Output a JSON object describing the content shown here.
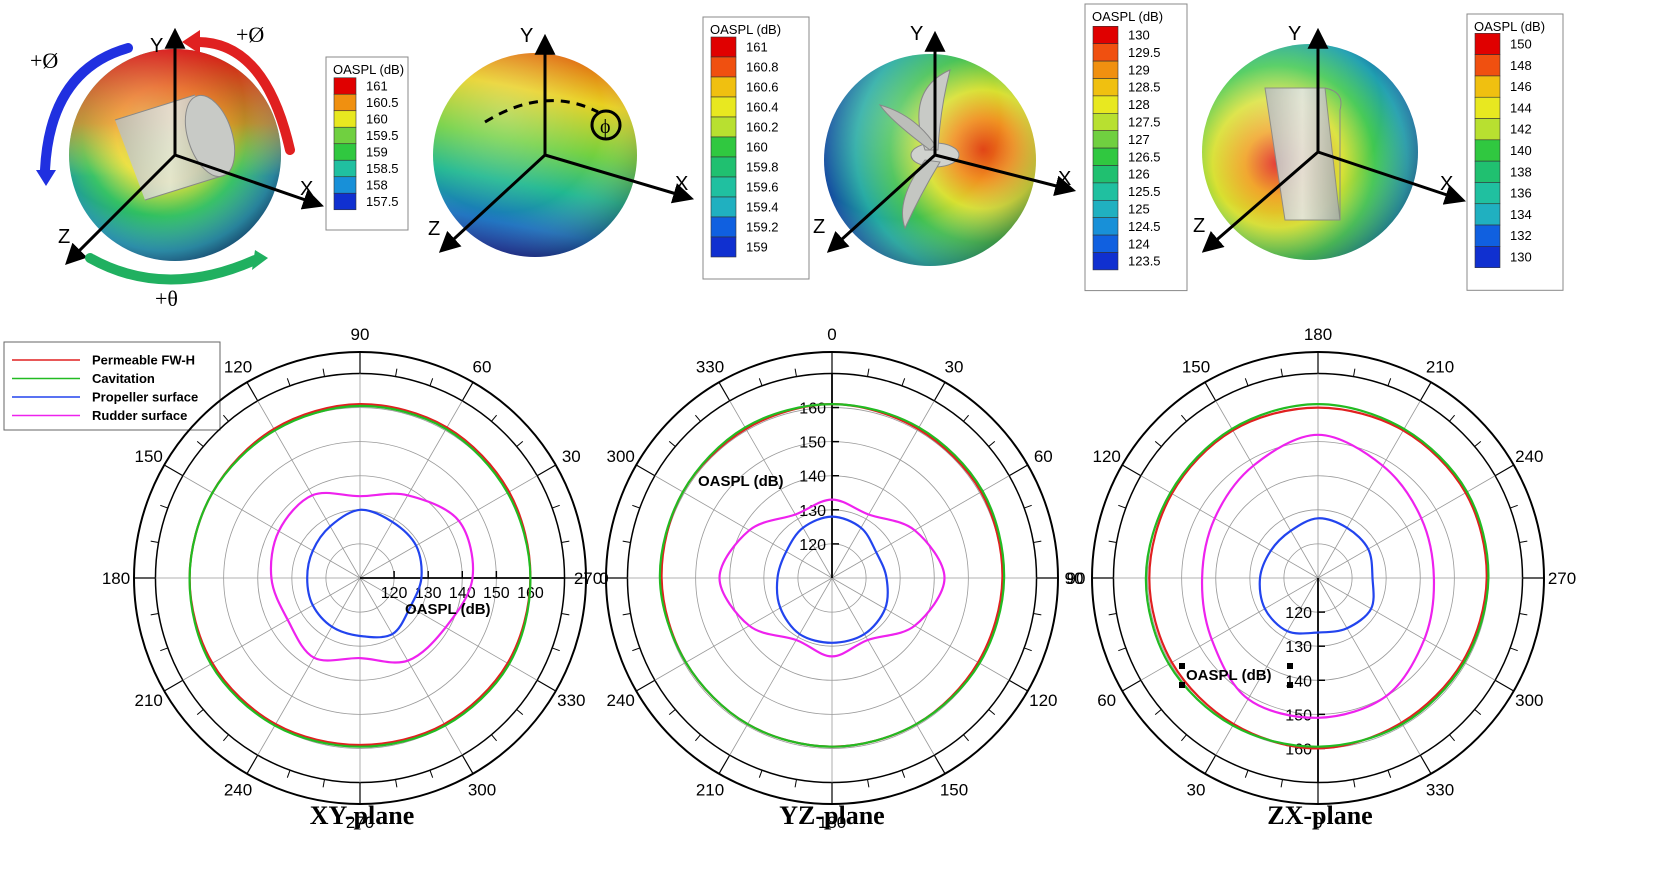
{
  "colors": {
    "permeable": "#e02020",
    "cavitation": "#22bb22",
    "propeller": "#2244ee",
    "rudder": "#ee22ee"
  },
  "spheres": [
    {
      "labels": {
        "x": "X",
        "y": "Y",
        "z": "Z",
        "phi_top": "+Ø",
        "phi_left": "+Ø",
        "theta": "+θ"
      },
      "colorbar": {
        "title": "OASPL (dB)",
        "ticks": [
          "161",
          "160.5",
          "160",
          "159.5",
          "159",
          "158.5",
          "158",
          "157.5"
        ]
      }
    },
    {
      "labels": {
        "x": "X",
        "y": "Y",
        "z": "Z"
      },
      "colorbar": {
        "title": "OASPL (dB)",
        "ticks": [
          "161",
          "160.8",
          "160.6",
          "160.4",
          "160.2",
          "160",
          "159.8",
          "159.6",
          "159.4",
          "159.2",
          "159"
        ]
      }
    },
    {
      "labels": {
        "x": "X",
        "y": "Y",
        "z": "Z"
      },
      "colorbar": {
        "title": "OASPL (dB)",
        "ticks": [
          "130",
          "129.5",
          "129",
          "128.5",
          "128",
          "127.5",
          "127",
          "126.5",
          "126",
          "125.5",
          "125",
          "124.5",
          "124",
          "123.5"
        ]
      }
    },
    {
      "labels": {
        "x": "X",
        "y": "Y",
        "z": "Z"
      },
      "colorbar": {
        "title": "OASPL (dB)",
        "ticks": [
          "150",
          "148",
          "146",
          "144",
          "142",
          "140",
          "138",
          "136",
          "134",
          "132",
          "130"
        ]
      }
    }
  ],
  "legend": [
    "Permeable FW-H",
    "Cavitation",
    "Propeller surface",
    "Rudder surface"
  ],
  "chart_data": [
    {
      "type": "polar",
      "title": "XY-plane",
      "axis_label": "OASPL (dB)",
      "rlim": [
        110,
        170
      ],
      "radial_ticks": [
        "120",
        "130",
        "140",
        "150",
        "160"
      ],
      "angle_labels": [
        "0",
        "30",
        "60",
        "90",
        "120",
        "150",
        "180",
        "210",
        "240",
        "270",
        "300",
        "330"
      ],
      "angles_deg": [
        0,
        30,
        60,
        90,
        120,
        150,
        180,
        210,
        240,
        270,
        300,
        330
      ],
      "series": [
        {
          "name": "Permeable FW-H",
          "values": [
            160,
            160.5,
            161,
            161,
            160.5,
            160,
            160,
            160,
            159.5,
            159,
            159.5,
            160
          ]
        },
        {
          "name": "Cavitation",
          "values": [
            160,
            160,
            160.5,
            160.5,
            160,
            160,
            160,
            160.5,
            160,
            159.5,
            160,
            160.5
          ]
        },
        {
          "name": "Propeller surface",
          "values": [
            128,
            129,
            129,
            130,
            127.5,
            126,
            125.5,
            126,
            126.5,
            127,
            129,
            127
          ]
        },
        {
          "name": "Rudder surface",
          "values": [
            143,
            143.5,
            138,
            134,
            138,
            137.5,
            136,
            134.5,
            137,
            133.5,
            138,
            139
          ]
        }
      ]
    },
    {
      "type": "polar",
      "title": "YZ-plane",
      "axis_label": "OASPL (dB)",
      "rlim": [
        110,
        170
      ],
      "radial_ticks": [
        "120",
        "130",
        "140",
        "150",
        "160"
      ],
      "angle_labels": [
        "0",
        "30",
        "60",
        "90",
        "120",
        "150",
        "180",
        "210",
        "240",
        "270",
        "300",
        "330"
      ],
      "angles_deg": [
        0,
        30,
        60,
        90,
        120,
        150,
        180,
        210,
        240,
        270,
        300,
        330
      ],
      "series": [
        {
          "name": "Permeable FW-H",
          "values": [
            161,
            160.5,
            160.5,
            160,
            159.5,
            159.5,
            159.5,
            159.5,
            159.5,
            160,
            160.5,
            160.5
          ]
        },
        {
          "name": "Cavitation",
          "values": [
            161,
            161,
            161,
            160.5,
            160,
            159.5,
            159.5,
            159.5,
            159.5,
            160.5,
            160.5,
            161
          ]
        },
        {
          "name": "Propeller surface",
          "values": [
            128,
            127,
            125,
            126,
            128,
            129,
            129,
            129,
            127.5,
            126,
            125.5,
            127
          ]
        },
        {
          "name": "Rudder surface",
          "values": [
            133,
            131.5,
            138,
            143,
            138,
            131,
            133,
            131,
            138,
            143,
            138,
            131.5
          ]
        }
      ]
    },
    {
      "type": "polar",
      "title": "ZX-plane",
      "axis_label": "OASPL (dB)",
      "rlim": [
        110,
        170
      ],
      "radial_ticks": [
        "120",
        "130",
        "140",
        "150",
        "160"
      ],
      "angle_labels": [
        "0",
        "30",
        "60",
        "90",
        "120",
        "150",
        "180",
        "210",
        "240",
        "270",
        "300",
        "330"
      ],
      "angles_deg": [
        0,
        30,
        60,
        90,
        120,
        150,
        180,
        210,
        240,
        270,
        300,
        330
      ],
      "series": [
        {
          "name": "Permeable FW-H",
          "values": [
            160,
            159.5,
            159.5,
            159.5,
            159.5,
            160,
            160,
            160,
            160,
            159.5,
            159,
            159
          ]
        },
        {
          "name": "Cavitation",
          "values": [
            159.5,
            160,
            160.5,
            160.5,
            160,
            160.5,
            161,
            160.5,
            160.5,
            160,
            159.5,
            159.5
          ]
        },
        {
          "name": "Propeller surface",
          "values": [
            126,
            128,
            128,
            127,
            126,
            126,
            127.5,
            127,
            127,
            126,
            128,
            127
          ]
        },
        {
          "name": "Rudder surface",
          "values": [
            151,
            151,
            146,
            144,
            145,
            148,
            152,
            148,
            145,
            144,
            146,
            150
          ]
        }
      ]
    }
  ]
}
